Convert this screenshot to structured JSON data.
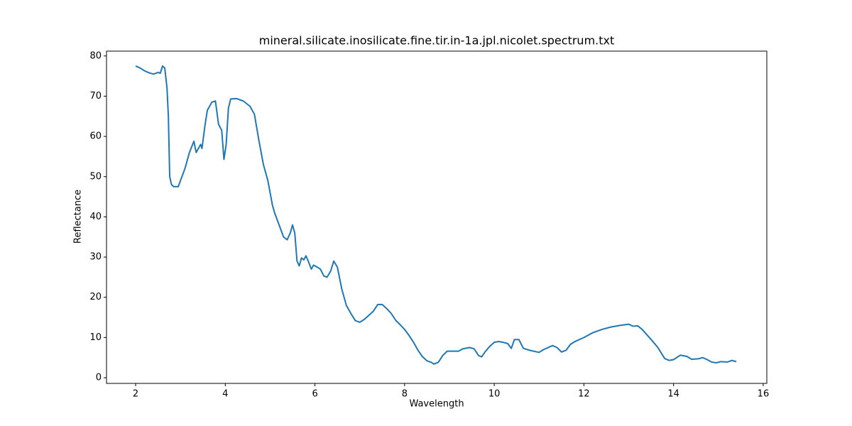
{
  "chart_data": {
    "type": "line",
    "title": "mineral.silicate.inosilicate.fine.tir.in-1a.jpl.nicolet.spectrum.txt",
    "x_label": "Wavelength",
    "y_label": "Reflectance",
    "xlim": [
      1.35,
      16.08
    ],
    "ylim": [
      -1.41,
      81.2
    ],
    "xticks": [
      2,
      4,
      6,
      8,
      10,
      12,
      14,
      16
    ],
    "yticks": [
      0,
      10,
      20,
      30,
      40,
      50,
      60,
      70,
      80
    ],
    "grid": false,
    "series": [
      {
        "name": "Reflectance",
        "color": "#1f77b4",
        "x": [
          2.0,
          2.1,
          2.2,
          2.3,
          2.4,
          2.5,
          2.55,
          2.6,
          2.65,
          2.7,
          2.73,
          2.76,
          2.8,
          2.85,
          2.95,
          3.0,
          3.1,
          3.2,
          3.3,
          3.35,
          3.4,
          3.45,
          3.48,
          3.55,
          3.6,
          3.7,
          3.78,
          3.85,
          3.92,
          3.97,
          4.02,
          4.07,
          4.12,
          4.25,
          4.4,
          4.55,
          4.65,
          4.75,
          4.85,
          4.95,
          5.05,
          5.1,
          5.2,
          5.3,
          5.38,
          5.45,
          5.5,
          5.55,
          5.6,
          5.65,
          5.7,
          5.75,
          5.8,
          5.85,
          5.92,
          5.97,
          6.05,
          6.12,
          6.2,
          6.27,
          6.35,
          6.42,
          6.5,
          6.6,
          6.7,
          6.8,
          6.9,
          7.0,
          7.1,
          7.2,
          7.3,
          7.4,
          7.5,
          7.6,
          7.7,
          7.8,
          7.9,
          8.0,
          8.1,
          8.2,
          8.3,
          8.4,
          8.5,
          8.6,
          8.65,
          8.75,
          8.85,
          8.95,
          9.05,
          9.2,
          9.3,
          9.45,
          9.55,
          9.65,
          9.72,
          9.8,
          9.9,
          10.0,
          10.1,
          10.2,
          10.3,
          10.38,
          10.45,
          10.55,
          10.65,
          10.8,
          11.0,
          11.1,
          11.3,
          11.4,
          11.5,
          11.6,
          11.7,
          11.8,
          12.0,
          12.2,
          12.4,
          12.6,
          12.8,
          13.0,
          13.1,
          13.2,
          13.3,
          13.5,
          13.65,
          13.8,
          13.9,
          14.0,
          14.15,
          14.3,
          14.4,
          14.55,
          14.65,
          14.75,
          14.85,
          14.95,
          15.05,
          15.2,
          15.3,
          15.4
        ],
        "values": [
          77.5,
          77,
          76.3,
          75.8,
          75.5,
          75.9,
          75.7,
          77.5,
          77,
          72,
          65,
          50,
          48,
          47.5,
          47.5,
          49,
          52,
          56,
          58.8,
          56,
          57,
          58,
          57,
          63,
          66.5,
          68.5,
          68.8,
          63,
          61.5,
          54.3,
          58,
          67,
          69.3,
          69.4,
          68.8,
          67.5,
          65.5,
          59,
          53,
          49,
          43,
          41,
          38,
          35,
          34.3,
          36,
          38,
          36,
          29,
          27.8,
          29.8,
          29.3,
          30.3,
          29,
          27,
          28,
          27.5,
          27,
          25.3,
          25,
          26.5,
          29,
          27.5,
          22,
          18,
          16,
          14.2,
          13.8,
          14.5,
          15.5,
          16.5,
          18.2,
          18.2,
          17.2,
          16,
          14.3,
          13.2,
          12,
          10.5,
          8.8,
          6.8,
          5.2,
          4.2,
          3.8,
          3.4,
          3.8,
          5.5,
          6.6,
          6.6,
          6.6,
          7.2,
          7.5,
          7.2,
          5.5,
          5.2,
          6.5,
          7.8,
          8.8,
          9,
          8.8,
          8.5,
          7.3,
          9.5,
          9.5,
          7.3,
          6.8,
          6.3,
          7,
          8,
          7.5,
          6.4,
          6.8,
          8.3,
          9,
          10,
          11.2,
          12,
          12.6,
          13,
          13.3,
          12.8,
          12.9,
          12,
          9.5,
          7.5,
          4.8,
          4.3,
          4.5,
          5.6,
          5.3,
          4.6,
          4.7,
          5,
          4.5,
          3.9,
          3.7,
          4,
          3.9,
          4.3,
          4
        ]
      }
    ]
  }
}
